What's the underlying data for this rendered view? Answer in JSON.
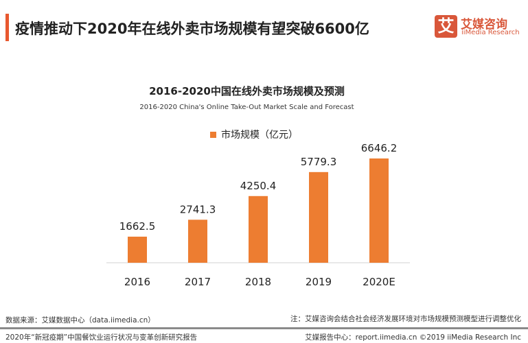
{
  "header": {
    "title": "疫情推动下2020年在线外卖市场规模有望突破6600亿",
    "accent_color": "#e8582f"
  },
  "logo": {
    "mark": "艾",
    "cn": "艾媒咨询",
    "en": "iiMedia Research"
  },
  "chart_data": {
    "type": "bar",
    "title": "2016-2020中国在线外卖市场规模及预测",
    "subtitle": "2016-2020 China's Online Take-Out Market Scale and Forecast",
    "categories": [
      "2016",
      "2017",
      "2018",
      "2019",
      "2020E"
    ],
    "series": [
      {
        "name": "市场规模（亿元）",
        "values": [
          1662.5,
          2741.3,
          4250.4,
          5779.3,
          6646.2
        ],
        "color": "#ed7d31"
      }
    ],
    "data_labels": [
      "1662.5",
      "2741.3",
      "4250.4",
      "5779.3",
      "6646.2"
    ],
    "ylim": [
      0,
      6646.2
    ],
    "grid": false,
    "legend": "top"
  },
  "footer": {
    "source": "数据来源：艾媒数据中心（data.iimedia.cn）",
    "note": "注：艾媒咨询会结合社会经济发展环境对市场规模预测模型进行调整优化",
    "report": "2020年“新冠疫期”中国餐饮业运行状况与变革创新研究报告",
    "copyright": "艾媒报告中心：report.iimedia.cn  ©2019  iiMedia Research Inc"
  }
}
